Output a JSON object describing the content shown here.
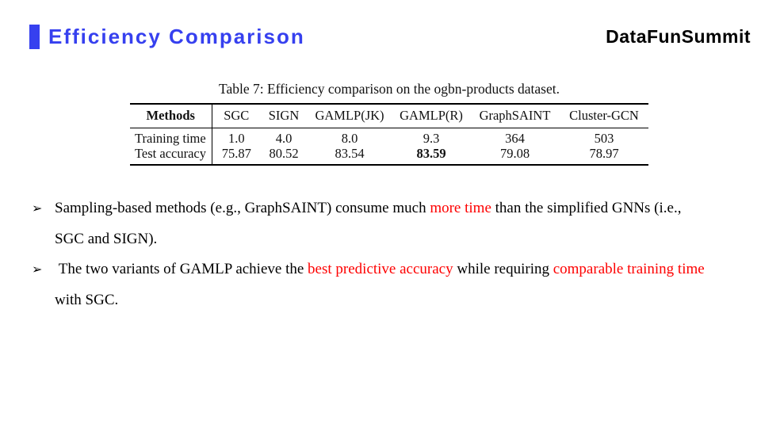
{
  "header": {
    "title": "Efficiency Comparison",
    "logo": "DataFunSummit",
    "accent_color": "#3640ef"
  },
  "table": {
    "caption": "Table 7: Efficiency comparison on the ogbn-products dataset.",
    "columns": [
      "Methods",
      "SGC",
      "SIGN",
      "GAMLP(JK)",
      "GAMLP(R)",
      "GraphSAINT",
      "Cluster-GCN"
    ],
    "rows": [
      {
        "label": "Training time",
        "values": [
          "1.0",
          "4.0",
          "8.0",
          "9.3",
          "364",
          "503"
        ],
        "bold_index": -1
      },
      {
        "label": "Test accuracy",
        "values": [
          "75.87",
          "80.52",
          "83.54",
          "83.59",
          "79.08",
          "78.97"
        ],
        "bold_index": 3
      }
    ]
  },
  "bullets": {
    "marker": "➢",
    "highlight_color": "#fe0000",
    "items": [
      {
        "segments": [
          {
            "text": "Sampling-based methods (e.g., GraphSAINT) consume much "
          },
          {
            "text": "more time",
            "highlight": true
          },
          {
            "text": " than the simplified GNNs (i.e., SGC and SIGN)."
          }
        ]
      },
      {
        "segments": [
          {
            "text": " The two variants of GAMLP achieve the "
          },
          {
            "text": "best predictive accuracy",
            "highlight": true
          },
          {
            "text": " while requiring "
          },
          {
            "text": "comparable training time",
            "highlight": true
          },
          {
            "text": " with SGC."
          }
        ]
      }
    ]
  }
}
